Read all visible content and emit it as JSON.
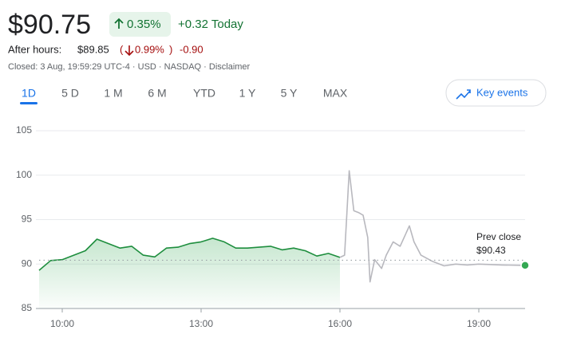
{
  "header": {
    "price": "$90.75",
    "change_pct": "0.35%",
    "change_today": "+0.32 Today",
    "after_hours_label": "After hours:",
    "after_hours_price": "$89.85",
    "paren_open": "(",
    "after_hours_pct": "0.99%",
    "paren_close": ")",
    "after_hours_change": "-0.90",
    "status": "Closed: 3 Aug, 19:59:29 UTC-4 · USD · NASDAQ · Disclaimer"
  },
  "tabs": [
    "1D",
    "5 D",
    "1 M",
    "6 M",
    "YTD",
    "1 Y",
    "5 Y",
    "MAX"
  ],
  "key_events": "Key events",
  "chart_data": {
    "type": "line",
    "xlim": [
      9.5,
      20
    ],
    "ylim": [
      85,
      105
    ],
    "yticks": [
      85,
      90,
      95,
      100,
      105
    ],
    "xticks": [
      {
        "value": 10,
        "label": "10:00"
      },
      {
        "value": 13,
        "label": "13:00"
      },
      {
        "value": 16,
        "label": "16:00"
      },
      {
        "value": 19,
        "label": "19:00"
      }
    ],
    "grid": true,
    "prev_close_title": "Prev close",
    "prev_close": {
      "value": 90.43,
      "label": "$90.43"
    },
    "series": [
      {
        "color": "#1e8e3e",
        "area": true,
        "x": [
          9.5,
          9.75,
          10,
          10.25,
          10.5,
          10.75,
          11,
          11.25,
          11.5,
          11.75,
          12,
          12.25,
          12.5,
          12.75,
          13,
          13.25,
          13.5,
          13.75,
          14,
          14.25,
          14.5,
          14.75,
          15,
          15.25,
          15.5,
          15.75,
          16
        ],
        "values": [
          89.3,
          90.4,
          90.5,
          91.0,
          91.5,
          92.8,
          92.3,
          91.8,
          92.0,
          91.0,
          90.8,
          91.8,
          91.9,
          92.3,
          92.5,
          92.9,
          92.5,
          91.8,
          91.8,
          91.9,
          92.0,
          91.6,
          91.8,
          91.5,
          90.9,
          91.2,
          90.75
        ]
      },
      {
        "color": "#b8b8be",
        "area": false,
        "x": [
          16,
          16.1,
          16.2,
          16.3,
          16.4,
          16.5,
          16.6,
          16.65,
          16.75,
          16.9,
          17,
          17.15,
          17.3,
          17.5,
          17.6,
          17.75,
          18,
          18.25,
          18.5,
          18.75,
          19,
          19.5,
          20
        ],
        "values": [
          90.75,
          91.0,
          100.5,
          96.0,
          95.8,
          95.5,
          93.0,
          88.0,
          90.5,
          89.5,
          91.0,
          92.5,
          92.0,
          94.3,
          92.5,
          91.0,
          90.3,
          89.8,
          90.0,
          89.9,
          90.0,
          89.9,
          89.85
        ]
      }
    ]
  }
}
